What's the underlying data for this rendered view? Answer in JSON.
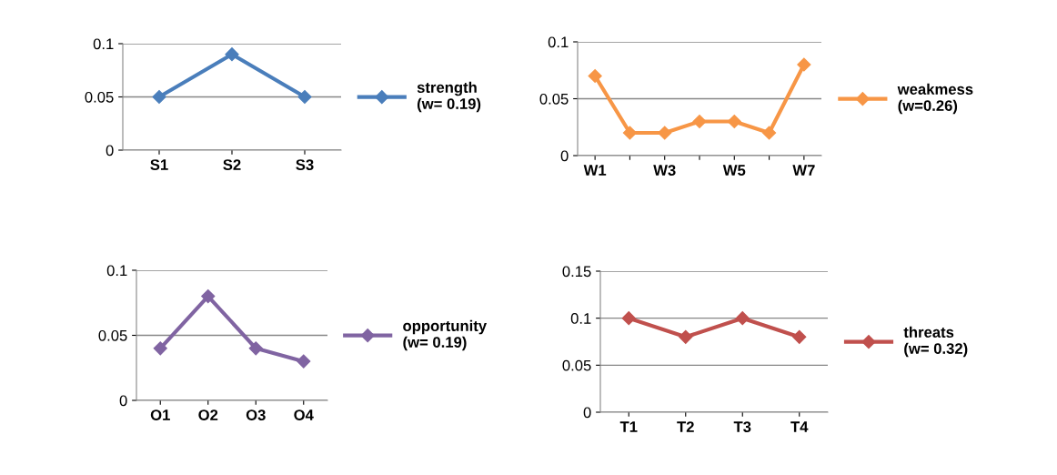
{
  "chart_data": [
    {
      "type": "line",
      "categories": [
        "S1",
        "S2",
        "S3"
      ],
      "ylim": [
        0,
        0.1
      ],
      "yticks": [
        0,
        0.05,
        0.1
      ],
      "grid": "y",
      "legend": "right",
      "marker": "diamond",
      "series": [
        {
          "name": "strength\n(w= 0.19)",
          "color": "#4a7ebb",
          "values": [
            0.05,
            0.09,
            0.05
          ]
        }
      ]
    },
    {
      "type": "line",
      "categories": [
        "W1",
        null,
        "W3",
        null,
        "W5",
        null,
        "W7"
      ],
      "ylim": [
        0,
        0.1
      ],
      "yticks": [
        0,
        0.05,
        0.1
      ],
      "grid": "y",
      "legend": "right",
      "marker": "diamond",
      "series": [
        {
          "name": "weakmess\n(w=0.26)",
          "color": "#f79646",
          "values": [
            0.07,
            0.02,
            0.02,
            0.03,
            0.03,
            0.02,
            0.08
          ]
        }
      ]
    },
    {
      "type": "line",
      "categories": [
        "O1",
        "O2",
        "O3",
        "O4"
      ],
      "ylim": [
        0,
        0.1
      ],
      "yticks": [
        0,
        0.05,
        0.1
      ],
      "grid": "y",
      "legend": "right",
      "marker": "diamond",
      "series": [
        {
          "name": "opportunity\n(w= 0.19)",
          "color": "#8064a2",
          "values": [
            0.04,
            0.08,
            0.04,
            0.03
          ]
        }
      ]
    },
    {
      "type": "line",
      "categories": [
        "T1",
        "T2",
        "T3",
        "T4"
      ],
      "ylim": [
        0,
        0.15
      ],
      "yticks": [
        0,
        0.05,
        0.1,
        0.15
      ],
      "grid": "y",
      "legend": "right",
      "marker": "diamond",
      "series": [
        {
          "name": "threats\n(w= 0.32)",
          "color": "#c0504d",
          "values": [
            0.1,
            0.08,
            0.1,
            0.08
          ]
        }
      ]
    }
  ]
}
